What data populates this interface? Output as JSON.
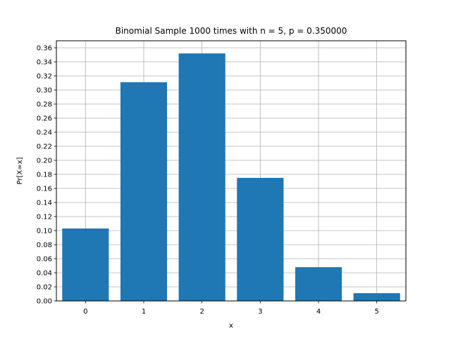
{
  "chart_data": {
    "type": "bar",
    "title": "Binomial Sample 1000 times with n = 5, p = 0.350000",
    "xlabel": "x",
    "ylabel": "Pr[X=x]",
    "categories": [
      "0",
      "1",
      "2",
      "3",
      "4",
      "5"
    ],
    "x": [
      0,
      1,
      2,
      3,
      4,
      5
    ],
    "values": [
      0.103,
      0.311,
      0.352,
      0.175,
      0.048,
      0.011
    ],
    "xlim": [
      -0.5,
      5.5
    ],
    "ylim": [
      0,
      0.37
    ],
    "yticks": [
      0.0,
      0.02,
      0.04,
      0.06,
      0.08,
      0.1,
      0.12,
      0.14,
      0.16,
      0.18,
      0.2,
      0.22,
      0.24,
      0.26,
      0.28,
      0.3,
      0.32,
      0.34,
      0.36
    ],
    "ytick_labels": [
      "0.00",
      "0.02",
      "0.04",
      "0.06",
      "0.08",
      "0.10",
      "0.12",
      "0.14",
      "0.16",
      "0.18",
      "0.20",
      "0.22",
      "0.24",
      "0.26",
      "0.28",
      "0.30",
      "0.32",
      "0.34",
      "0.36"
    ],
    "grid": true,
    "bar_color": "#1f77b4",
    "grid_color": "#b0b0b0"
  }
}
